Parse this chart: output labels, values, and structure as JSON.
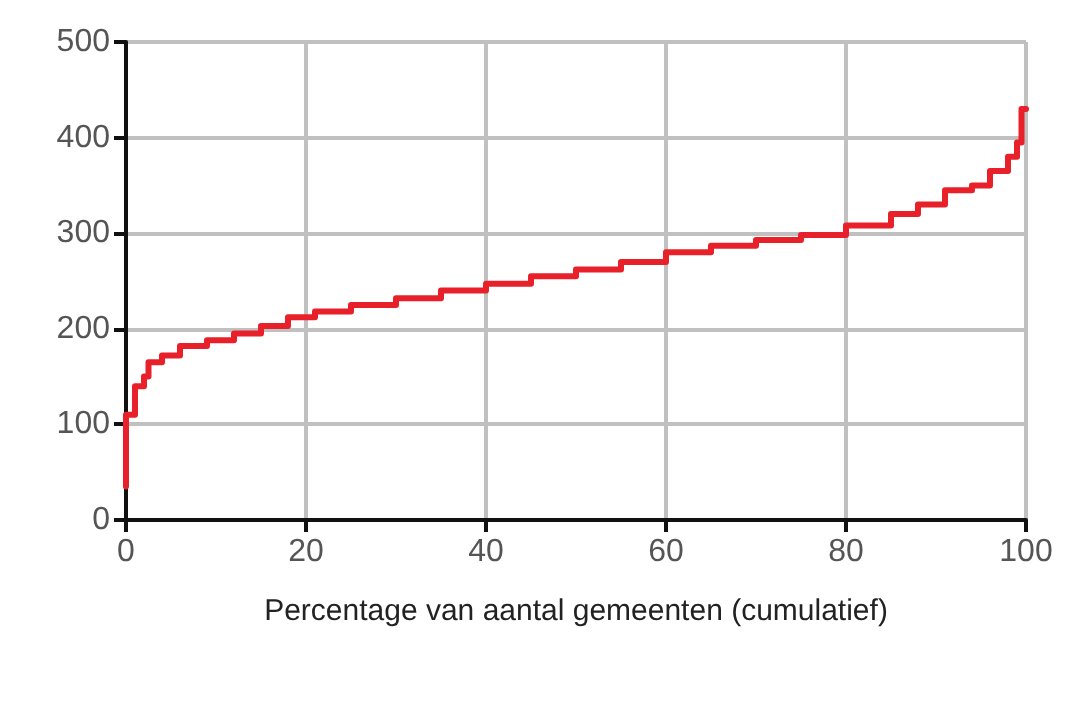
{
  "chart_data": {
    "type": "step",
    "xlabel": "Percentage van aantal gemeenten (cumulatief)",
    "x": [
      0,
      0,
      1,
      2,
      2.5,
      4,
      6,
      9,
      12,
      15,
      18,
      21,
      25,
      30,
      35,
      40,
      45,
      50,
      55,
      60,
      65,
      70,
      75,
      80,
      85,
      88,
      91,
      94,
      96,
      98,
      99,
      99.5,
      100
    ],
    "series": [
      {
        "color": "#e8202a",
        "values": [
          35,
          110,
          140,
          150,
          165,
          172,
          182,
          188,
          195,
          203,
          212,
          218,
          225,
          232,
          240,
          247,
          255,
          262,
          270,
          280,
          287,
          293,
          298,
          308,
          320,
          330,
          345,
          350,
          365,
          380,
          395,
          430,
          430
        ]
      }
    ],
    "xlim": [
      0,
      100
    ],
    "xticks": [
      0,
      20,
      40,
      60,
      80,
      100
    ],
    "ylim": [
      0,
      500
    ],
    "yticks": [
      0,
      100,
      200,
      300,
      400,
      500
    ],
    "grid": true,
    "marker": "none",
    "line_style": "solid"
  }
}
